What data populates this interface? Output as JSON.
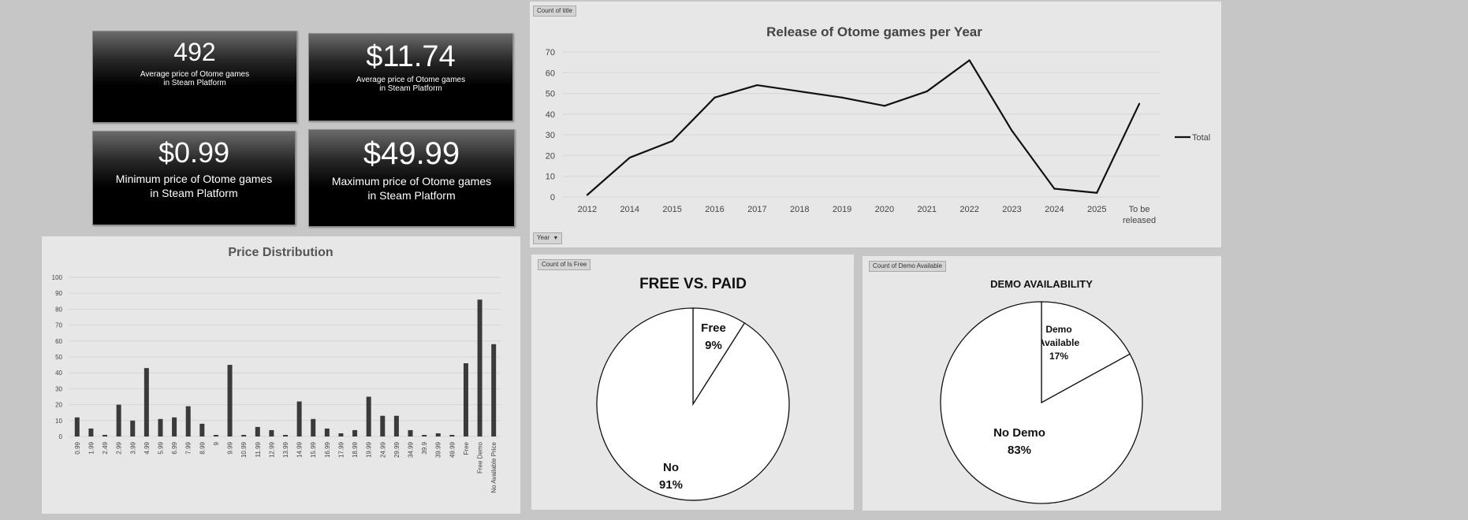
{
  "kpis": {
    "count": {
      "value": "492",
      "caption_line1": "Average price of Otome games",
      "caption_line2": "in Steam Platform"
    },
    "avg": {
      "value": "$11.74",
      "caption_line1": "Average price of Otome games",
      "caption_line2": "in Steam Platform"
    },
    "min": {
      "value": "$0.99",
      "caption_line1": "Minimum price of Otome games",
      "caption_line2": "in Steam Platform"
    },
    "max": {
      "value": "$49.99",
      "caption_line1": "Maximum price of Otome games",
      "caption_line2": "in Steam Platform"
    }
  },
  "pivot_buttons": {
    "count_of_title": "Count of title",
    "year": "Year",
    "count_of_is_free": "Count of Is Free",
    "count_of_demo": "Count of Demo Available"
  },
  "colors": {
    "background": "#c6c6c6",
    "panel": "#e7e7e7",
    "line": "#111111",
    "bar": "#3a3a3a",
    "grid": "#d6d6d6"
  },
  "chart_data": [
    {
      "type": "line",
      "title": "Release of Otome games per Year",
      "categories": [
        "2012",
        "2014",
        "2015",
        "2016",
        "2017",
        "2018",
        "2019",
        "2020",
        "2021",
        "2022",
        "2023",
        "2024",
        "2025",
        "To be released"
      ],
      "series": [
        {
          "name": "Total",
          "values": [
            1,
            19,
            27,
            48,
            54,
            51,
            48,
            44,
            51,
            66,
            32,
            4,
            2,
            45
          ]
        }
      ],
      "ylim": [
        0,
        70
      ],
      "yticks": [
        0,
        10,
        20,
        30,
        40,
        50,
        60,
        70
      ],
      "grid": true,
      "legend": "right"
    },
    {
      "type": "bar",
      "title": "Price Distribution",
      "categories": [
        "0.99",
        "1.99",
        "2.49",
        "2.99",
        "3.99",
        "4.99",
        "5.99",
        "6.99",
        "7.99",
        "8.99",
        "9",
        "9.99",
        "10.99",
        "11.99",
        "12.99",
        "13.99",
        "14.99",
        "15.99",
        "16.99",
        "17.99",
        "18.99",
        "19.99",
        "24.99",
        "29.99",
        "34.99",
        "39.9",
        "39.99",
        "49.99",
        "Free",
        "Free Demo",
        "No Available Price"
      ],
      "values": [
        12,
        5,
        1,
        20,
        10,
        43,
        11,
        12,
        19,
        8,
        1,
        45,
        1,
        6,
        4,
        1,
        22,
        11,
        5,
        2,
        4,
        25,
        13,
        13,
        4,
        1,
        2,
        1,
        46,
        86,
        58
      ],
      "ylim": [
        0,
        100
      ],
      "yticks": [
        0,
        10,
        20,
        30,
        40,
        50,
        60,
        70,
        80,
        90,
        100
      ],
      "grid": true
    },
    {
      "type": "pie",
      "title": "FREE VS. PAID",
      "slices": [
        {
          "label": "Free",
          "percent_label": "9%",
          "value": 9
        },
        {
          "label": "No",
          "percent_label": "91%",
          "value": 91
        }
      ]
    },
    {
      "type": "pie",
      "title": "DEMO AVAILABILITY",
      "slices": [
        {
          "label": "Demo Available",
          "label_lines": [
            "Demo",
            "Available"
          ],
          "percent_label": "17%",
          "value": 17
        },
        {
          "label": "No Demo",
          "label_lines": [
            "No Demo"
          ],
          "percent_label": "83%",
          "value": 83
        }
      ]
    }
  ]
}
